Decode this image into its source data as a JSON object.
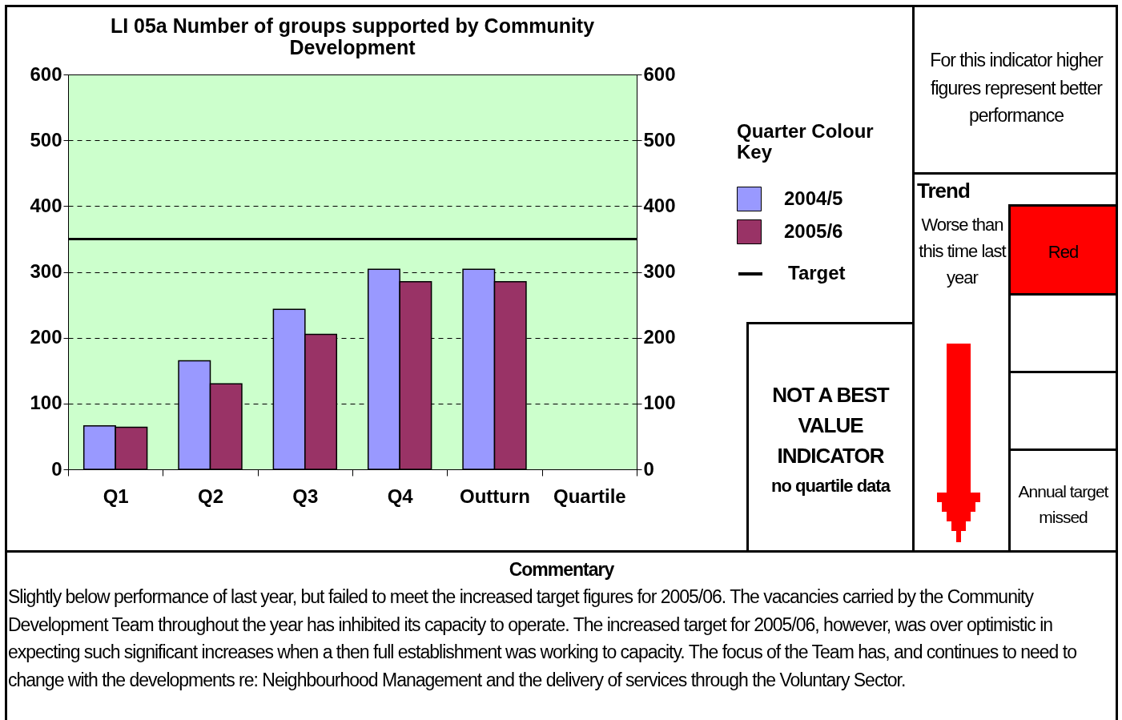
{
  "chart_data": {
    "type": "bar",
    "title": "LI 05a Number of groups supported by Community Development",
    "categories": [
      "Q1",
      "Q2",
      "Q3",
      "Q4",
      "Outturn",
      "Quartile"
    ],
    "series": [
      {
        "name": "2004/5",
        "color": "#9999ff",
        "values": [
          66,
          165,
          243,
          304,
          304,
          null
        ]
      },
      {
        "name": "2005/6",
        "color": "#993366",
        "values": [
          64,
          130,
          205,
          285,
          285,
          null
        ]
      }
    ],
    "ylim": [
      0,
      600
    ],
    "yticks": [
      0,
      100,
      200,
      300,
      400,
      500,
      600
    ],
    "y2lim": [
      0,
      600
    ],
    "y2ticks": [
      0,
      100,
      200,
      300,
      400,
      500,
      600
    ],
    "ref_lines": [
      {
        "axis": "y",
        "value": 350,
        "label": "Target",
        "color": "#000000"
      }
    ],
    "grid": "y",
    "legend": "right",
    "legend_title": "Quarter Colour Key",
    "annotations": [
      "For this indicator higher figures represent better performance",
      "Trend",
      "Worse than this time last year",
      "Red",
      "NOT A BEST VALUE INDICATOR",
      "no quartile data",
      "Annual target missed",
      "Commentary",
      "Slightly below performance of last year, but failed to meet the increased target figures for 2005/06.  The vacancies carried by the Community Development Team throughout the year has inhibited its capacity to operate.  The increased target for 2005/06, however, was over optimistic in expecting such significant increases when a then full establishment was working to capacity.  The focus of the Team has, and continues to need to change with the developments re: Neighbourhood Management and the delivery of services through the Voluntary Sector."
    ]
  }
}
